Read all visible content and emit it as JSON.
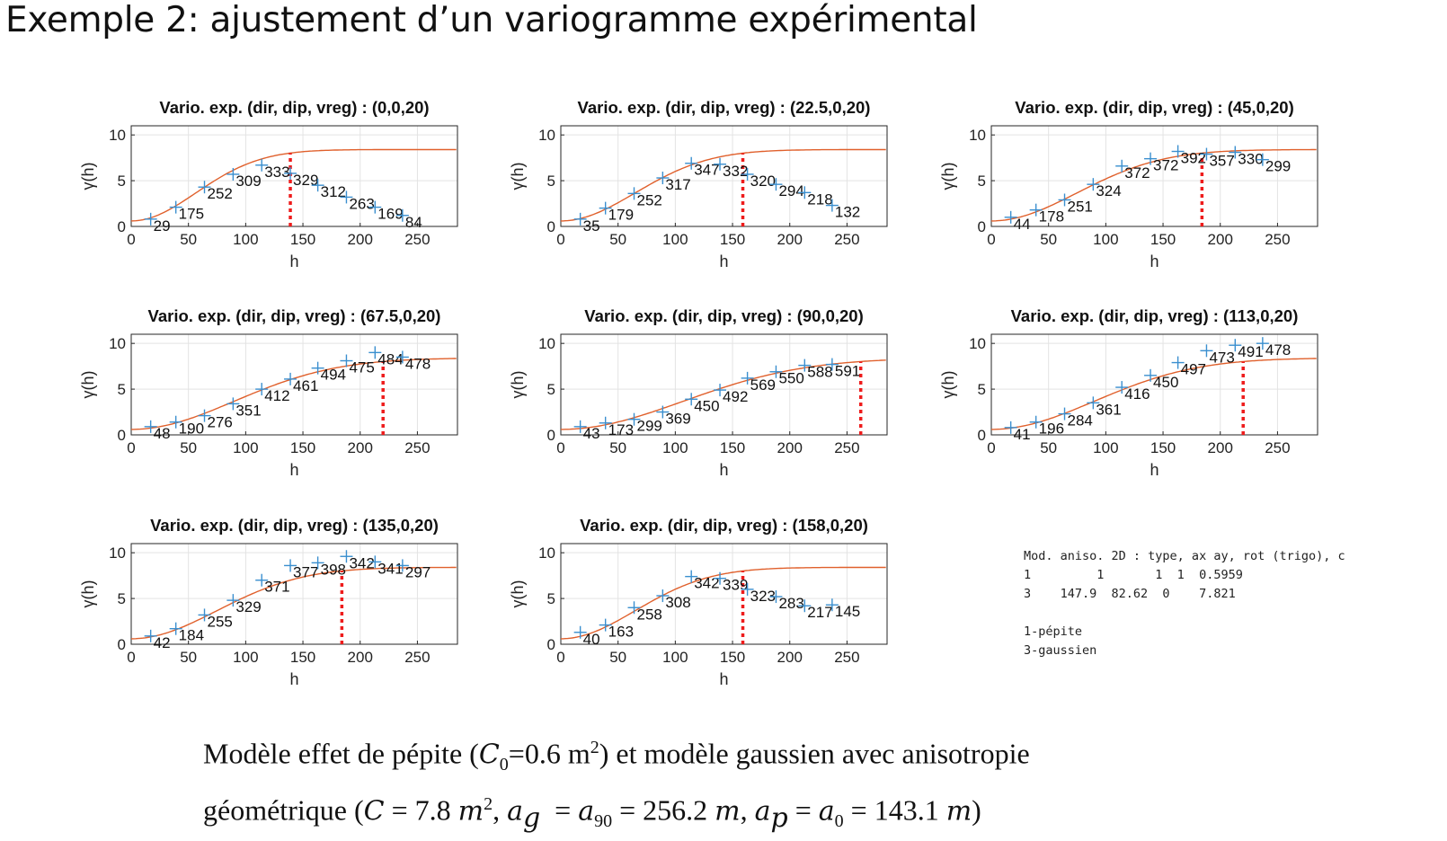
{
  "slide": {
    "title": "Exemple 2: ajustement d’un variogramme expérimental"
  },
  "colors": {
    "points": "#3a8fcf",
    "model_curve": "#e0602c",
    "range_marker": "#ee1c1c",
    "grid": "#e3e3e3"
  },
  "model_box": {
    "header": "Mod. aniso. 2D : type, ax ay, rot (trigo), c",
    "row1": "1         1       1  1  0.5959",
    "row2": "3    147.9  82.62  0    7.821",
    "legend1": "1-pépite",
    "legend2": "3-gaussien"
  },
  "caption": {
    "line1_a": "Modèle effet de pépite (",
    "line1_b": "=0.6 m",
    "line1_c": ") et modèle gaussien avec anisotropie",
    "line2_a": "géométrique (",
    "line2_b": ")"
  },
  "chart_data": [
    {
      "type": "scatter",
      "title": "Vario. exp. (dir, dip, vreg) : (0,0,20)",
      "xlabel": "h",
      "ylabel": "γ(h)",
      "xlim": [
        0,
        285
      ],
      "ylim": [
        0,
        11
      ],
      "xticks": [
        0,
        50,
        100,
        150,
        200,
        250
      ],
      "yticks": [
        0,
        5,
        10
      ],
      "grid": true,
      "range": 139,
      "points": [
        {
          "x": 17,
          "y": 0.8,
          "n": "29"
        },
        {
          "x": 39,
          "y": 2.1,
          "n": "175"
        },
        {
          "x": 64,
          "y": 4.3,
          "n": "252"
        },
        {
          "x": 89,
          "y": 5.7,
          "n": "309"
        },
        {
          "x": 114,
          "y": 6.7,
          "n": "333"
        },
        {
          "x": 139,
          "y": 5.8,
          "n": "329"
        },
        {
          "x": 163,
          "y": 4.5,
          "n": "312"
        },
        {
          "x": 188,
          "y": 3.2,
          "n": "263"
        },
        {
          "x": 213,
          "y": 2.1,
          "n": "169"
        },
        {
          "x": 237,
          "y": 1.2,
          "n": "84"
        }
      ],
      "model": {
        "nugget": 0.6,
        "sill": 7.8,
        "a": 80
      }
    },
    {
      "type": "scatter",
      "title": "Vario. exp. (dir, dip, vreg) : (22.5,0,20)",
      "xlabel": "h",
      "ylabel": "γ(h)",
      "xlim": [
        0,
        285
      ],
      "ylim": [
        0,
        11
      ],
      "xticks": [
        0,
        50,
        100,
        150,
        200,
        250
      ],
      "yticks": [
        0,
        5,
        10
      ],
      "grid": true,
      "range": 159,
      "points": [
        {
          "x": 17,
          "y": 0.8,
          "n": "35"
        },
        {
          "x": 39,
          "y": 2.0,
          "n": "179"
        },
        {
          "x": 64,
          "y": 3.6,
          "n": "252"
        },
        {
          "x": 89,
          "y": 5.3,
          "n": "317"
        },
        {
          "x": 114,
          "y": 6.9,
          "n": "347"
        },
        {
          "x": 139,
          "y": 6.8,
          "n": "332"
        },
        {
          "x": 163,
          "y": 5.7,
          "n": "320"
        },
        {
          "x": 188,
          "y": 4.6,
          "n": "294"
        },
        {
          "x": 213,
          "y": 3.7,
          "n": "218"
        },
        {
          "x": 237,
          "y": 2.3,
          "n": "132"
        }
      ],
      "model": {
        "nugget": 0.6,
        "sill": 7.8,
        "a": 92
      }
    },
    {
      "type": "scatter",
      "title": "Vario. exp. (dir, dip, vreg) : (45,0,20)",
      "xlabel": "h",
      "ylabel": "γ(h)",
      "xlim": [
        0,
        285
      ],
      "ylim": [
        0,
        11
      ],
      "xticks": [
        0,
        50,
        100,
        150,
        200,
        250
      ],
      "yticks": [
        0,
        5,
        10
      ],
      "grid": true,
      "range": 184,
      "points": [
        {
          "x": 17,
          "y": 1.0,
          "n": "44"
        },
        {
          "x": 39,
          "y": 1.8,
          "n": "178"
        },
        {
          "x": 64,
          "y": 2.9,
          "n": "251"
        },
        {
          "x": 89,
          "y": 4.6,
          "n": "324"
        },
        {
          "x": 114,
          "y": 6.6,
          "n": "372"
        },
        {
          "x": 139,
          "y": 7.4,
          "n": "372"
        },
        {
          "x": 163,
          "y": 8.2,
          "n": "392"
        },
        {
          "x": 188,
          "y": 7.9,
          "n": "357"
        },
        {
          "x": 213,
          "y": 8.1,
          "n": "330"
        },
        {
          "x": 237,
          "y": 7.3,
          "n": "299"
        }
      ],
      "model": {
        "nugget": 0.6,
        "sill": 7.8,
        "a": 106
      }
    },
    {
      "type": "scatter",
      "title": "Vario. exp. (dir, dip, vreg) : (67.5,0,20)",
      "xlabel": "h",
      "ylabel": "γ(h)",
      "xlim": [
        0,
        285
      ],
      "ylim": [
        0,
        11
      ],
      "xticks": [
        0,
        50,
        100,
        150,
        200,
        250
      ],
      "yticks": [
        0,
        5,
        10
      ],
      "grid": true,
      "range": 220,
      "points": [
        {
          "x": 17,
          "y": 0.9,
          "n": "48"
        },
        {
          "x": 39,
          "y": 1.4,
          "n": "190"
        },
        {
          "x": 64,
          "y": 2.1,
          "n": "276"
        },
        {
          "x": 89,
          "y": 3.4,
          "n": "351"
        },
        {
          "x": 114,
          "y": 5.0,
          "n": "412"
        },
        {
          "x": 139,
          "y": 6.1,
          "n": "461"
        },
        {
          "x": 163,
          "y": 7.3,
          "n": "494"
        },
        {
          "x": 188,
          "y": 8.1,
          "n": "475"
        },
        {
          "x": 213,
          "y": 9.0,
          "n": "484"
        },
        {
          "x": 237,
          "y": 8.5,
          "n": "478"
        }
      ],
      "model": {
        "nugget": 0.6,
        "sill": 7.8,
        "a": 127
      }
    },
    {
      "type": "scatter",
      "title": "Vario. exp. (dir, dip, vreg) : (90,0,20)",
      "xlabel": "h",
      "ylabel": "γ(h)",
      "xlim": [
        0,
        285
      ],
      "ylim": [
        0,
        11
      ],
      "xticks": [
        0,
        50,
        100,
        150,
        200,
        250
      ],
      "yticks": [
        0,
        5,
        10
      ],
      "grid": true,
      "range": 262,
      "points": [
        {
          "x": 17,
          "y": 0.9,
          "n": "43"
        },
        {
          "x": 39,
          "y": 1.3,
          "n": "173"
        },
        {
          "x": 64,
          "y": 1.7,
          "n": "299"
        },
        {
          "x": 89,
          "y": 2.5,
          "n": "369"
        },
        {
          "x": 114,
          "y": 3.9,
          "n": "450"
        },
        {
          "x": 139,
          "y": 4.9,
          "n": "492"
        },
        {
          "x": 163,
          "y": 6.2,
          "n": "569"
        },
        {
          "x": 188,
          "y": 6.9,
          "n": "550"
        },
        {
          "x": 213,
          "y": 7.6,
          "n": "588"
        },
        {
          "x": 237,
          "y": 7.7,
          "n": "591"
        }
      ],
      "model": {
        "nugget": 0.6,
        "sill": 7.8,
        "a": 151
      }
    },
    {
      "type": "scatter",
      "title": "Vario. exp. (dir, dip, vreg) : (113,0,20)",
      "xlabel": "h",
      "ylabel": "γ(h)",
      "xlim": [
        0,
        285
      ],
      "ylim": [
        0,
        11
      ],
      "xticks": [
        0,
        50,
        100,
        150,
        200,
        250
      ],
      "yticks": [
        0,
        5,
        10
      ],
      "grid": true,
      "range": 220,
      "points": [
        {
          "x": 17,
          "y": 0.8,
          "n": "41"
        },
        {
          "x": 39,
          "y": 1.4,
          "n": "196"
        },
        {
          "x": 64,
          "y": 2.3,
          "n": "284"
        },
        {
          "x": 89,
          "y": 3.5,
          "n": "361"
        },
        {
          "x": 114,
          "y": 5.2,
          "n": "416"
        },
        {
          "x": 139,
          "y": 6.5,
          "n": "450"
        },
        {
          "x": 163,
          "y": 7.9,
          "n": "497"
        },
        {
          "x": 188,
          "y": 9.2,
          "n": "473"
        },
        {
          "x": 213,
          "y": 9.8,
          "n": "491"
        },
        {
          "x": 237,
          "y": 10.0,
          "n": "478"
        }
      ],
      "model": {
        "nugget": 0.6,
        "sill": 7.8,
        "a": 127
      }
    },
    {
      "type": "scatter",
      "title": "Vario. exp. (dir, dip, vreg) : (135,0,20)",
      "xlabel": "h",
      "ylabel": "γ(h)",
      "xlim": [
        0,
        285
      ],
      "ylim": [
        0,
        11
      ],
      "xticks": [
        0,
        50,
        100,
        150,
        200,
        250
      ],
      "yticks": [
        0,
        5,
        10
      ],
      "grid": true,
      "range": 184,
      "points": [
        {
          "x": 17,
          "y": 0.9,
          "n": "42"
        },
        {
          "x": 39,
          "y": 1.7,
          "n": "184"
        },
        {
          "x": 64,
          "y": 3.2,
          "n": "255"
        },
        {
          "x": 89,
          "y": 4.8,
          "n": "329"
        },
        {
          "x": 114,
          "y": 7.0,
          "n": "371"
        },
        {
          "x": 139,
          "y": 8.6,
          "n": "377"
        },
        {
          "x": 163,
          "y": 8.9,
          "n": "398"
        },
        {
          "x": 188,
          "y": 9.6,
          "n": "342"
        },
        {
          "x": 213,
          "y": 9.0,
          "n": "341"
        },
        {
          "x": 237,
          "y": 8.6,
          "n": "297"
        }
      ],
      "model": {
        "nugget": 0.6,
        "sill": 7.8,
        "a": 106
      }
    },
    {
      "type": "scatter",
      "title": "Vario. exp. (dir, dip, vreg) : (158,0,20)",
      "xlabel": "h",
      "ylabel": "γ(h)",
      "xlim": [
        0,
        285
      ],
      "ylim": [
        0,
        11
      ],
      "xticks": [
        0,
        50,
        100,
        150,
        200,
        250
      ],
      "yticks": [
        0,
        5,
        10
      ],
      "grid": true,
      "range": 159,
      "points": [
        {
          "x": 17,
          "y": 1.3,
          "n": "40"
        },
        {
          "x": 39,
          "y": 2.1,
          "n": "163"
        },
        {
          "x": 64,
          "y": 4.0,
          "n": "258"
        },
        {
          "x": 89,
          "y": 5.3,
          "n": "308"
        },
        {
          "x": 114,
          "y": 7.4,
          "n": "342"
        },
        {
          "x": 139,
          "y": 7.2,
          "n": "339"
        },
        {
          "x": 163,
          "y": 6.0,
          "n": "323"
        },
        {
          "x": 188,
          "y": 5.2,
          "n": "283"
        },
        {
          "x": 213,
          "y": 4.2,
          "n": "217"
        },
        {
          "x": 237,
          "y": 4.3,
          "n": "145"
        }
      ],
      "model": {
        "nugget": 0.6,
        "sill": 7.8,
        "a": 92
      }
    }
  ]
}
